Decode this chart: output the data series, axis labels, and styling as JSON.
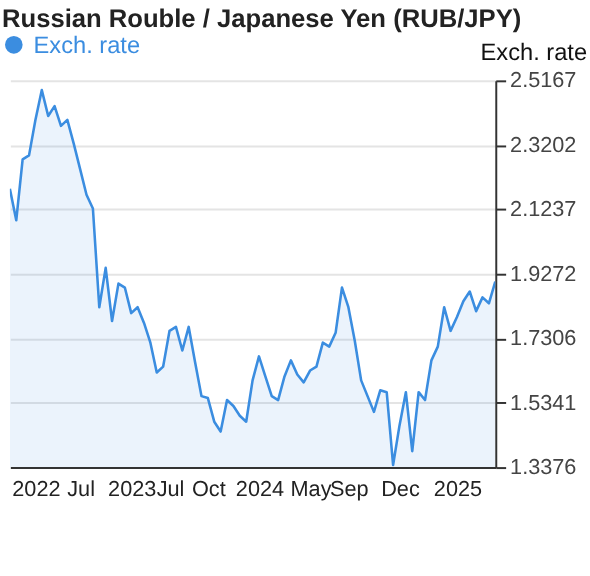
{
  "chart_data": {
    "type": "area",
    "title": "Russian Rouble / Japanese Yen (RUB/JPY)",
    "ylabel": "Exch. rate",
    "categories": [
      null,
      null,
      null,
      null,
      "2022",
      null,
      null,
      null,
      null,
      null,
      null,
      "Jul",
      null,
      null,
      null,
      null,
      null,
      null,
      null,
      "2023",
      null,
      null,
      null,
      null,
      null,
      "Jul",
      null,
      null,
      null,
      null,
      null,
      "Oct",
      null,
      null,
      null,
      null,
      null,
      null,
      null,
      "2024",
      null,
      null,
      null,
      null,
      null,
      null,
      null,
      "May",
      null,
      null,
      null,
      null,
      null,
      "Sep",
      null,
      null,
      null,
      null,
      null,
      null,
      null,
      "Dec",
      null,
      null,
      null,
      null,
      null,
      null,
      null,
      null,
      "2025",
      null,
      null,
      null,
      null,
      null,
      null
    ],
    "series": [
      {
        "name": "Exch. rate",
        "color": "#3b8de0",
        "values": [
          2.186,
          2.09,
          2.276,
          2.288,
          2.396,
          2.487,
          2.408,
          2.438,
          2.378,
          2.396,
          2.324,
          2.246,
          2.168,
          2.126,
          1.825,
          1.945,
          1.783,
          1.897,
          1.885,
          1.807,
          1.825,
          1.777,
          1.717,
          1.626,
          1.644,
          1.753,
          1.765,
          1.693,
          1.765,
          1.657,
          1.554,
          1.548,
          1.476,
          1.446,
          1.542,
          1.524,
          1.494,
          1.476,
          1.602,
          1.675,
          1.614,
          1.554,
          1.542,
          1.614,
          1.663,
          1.62,
          1.596,
          1.632,
          1.644,
          1.717,
          1.705,
          1.747,
          1.885,
          1.825,
          1.723,
          1.602,
          1.554,
          1.506,
          1.572,
          1.566,
          1.344,
          1.464,
          1.566,
          1.386,
          1.566,
          1.542,
          1.663,
          1.705,
          1.825,
          1.753,
          1.795,
          1.843,
          1.873,
          1.813,
          1.855,
          1.837,
          1.903
        ]
      }
    ],
    "ylim": [
      1.3376,
      2.5167
    ],
    "yticks": [
      1.3376,
      1.5341,
      1.7306,
      1.9272,
      2.1237,
      2.3202,
      2.5167
    ],
    "grid": "y",
    "legend": "top left",
    "marker": "none",
    "line_style": "solid"
  }
}
